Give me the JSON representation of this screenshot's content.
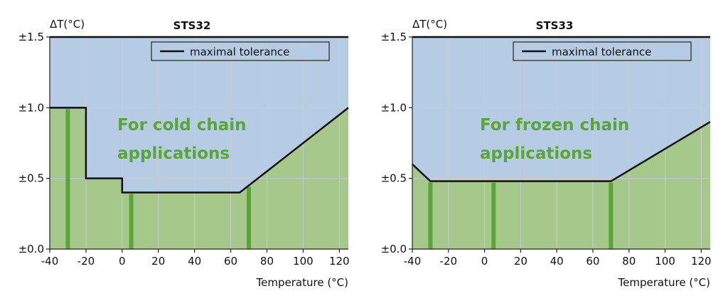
{
  "chart_data": [
    {
      "type": "area",
      "title": "STS32",
      "ylabel": "ΔT(°C)",
      "xlabel": "Temperature (°C)",
      "xlim": [
        -40,
        125
      ],
      "ylim": [
        0,
        1.5
      ],
      "x_ticks": [
        -40,
        -20,
        0,
        20,
        40,
        60,
        80,
        100,
        120
      ],
      "x_tick_labels": [
        "-40",
        "-20",
        "0",
        "20",
        "40",
        "60",
        "80",
        "100",
        "120"
      ],
      "y_ticks": [
        0,
        0.5,
        1.0,
        1.5
      ],
      "y_tick_labels": [
        "±0.0",
        "±0.5",
        "±1.0",
        "±1.5"
      ],
      "grid": true,
      "legend": {
        "label": "maximal tolerance",
        "position": "top-right"
      },
      "annotation": [
        "For cold chain",
        "applications"
      ],
      "series": [
        {
          "name": "maximal tolerance",
          "x": [
            -40,
            -20,
            -20,
            0,
            0,
            65,
            125
          ],
          "y": [
            1.0,
            1.0,
            0.5,
            0.5,
            0.4,
            0.4,
            1.0
          ]
        }
      ],
      "highlight_markers_x": [
        -30,
        5,
        70
      ]
    },
    {
      "type": "area",
      "title": "STS33",
      "ylabel": "ΔT(°C)",
      "xlabel": "Temperature (°C)",
      "xlim": [
        -40,
        125
      ],
      "ylim": [
        0,
        1.5
      ],
      "x_ticks": [
        -40,
        -20,
        0,
        20,
        40,
        60,
        80,
        100,
        120
      ],
      "x_tick_labels": [
        "-40",
        "-20",
        "0",
        "20",
        "40",
        "60",
        "80",
        "100",
        "120"
      ],
      "y_ticks": [
        0,
        0.5,
        1.0,
        1.5
      ],
      "y_tick_labels": [
        "±0.0",
        "±0.5",
        "±1.0",
        "±1.5"
      ],
      "grid": true,
      "legend": {
        "label": "maximal tolerance",
        "position": "top-right"
      },
      "annotation": [
        "For frozen chain",
        "applications"
      ],
      "series": [
        {
          "name": "maximal tolerance",
          "x": [
            -40,
            -30,
            70,
            125
          ],
          "y": [
            0.6,
            0.48,
            0.48,
            0.9
          ]
        }
      ],
      "highlight_markers_x": [
        -30,
        5,
        70
      ]
    }
  ],
  "colors": {
    "upper_area": "#b6cce4",
    "lower_area": "#a6c98b",
    "grid": "#c3ccd6",
    "marker": "#5aa53a",
    "line": "#111111"
  }
}
